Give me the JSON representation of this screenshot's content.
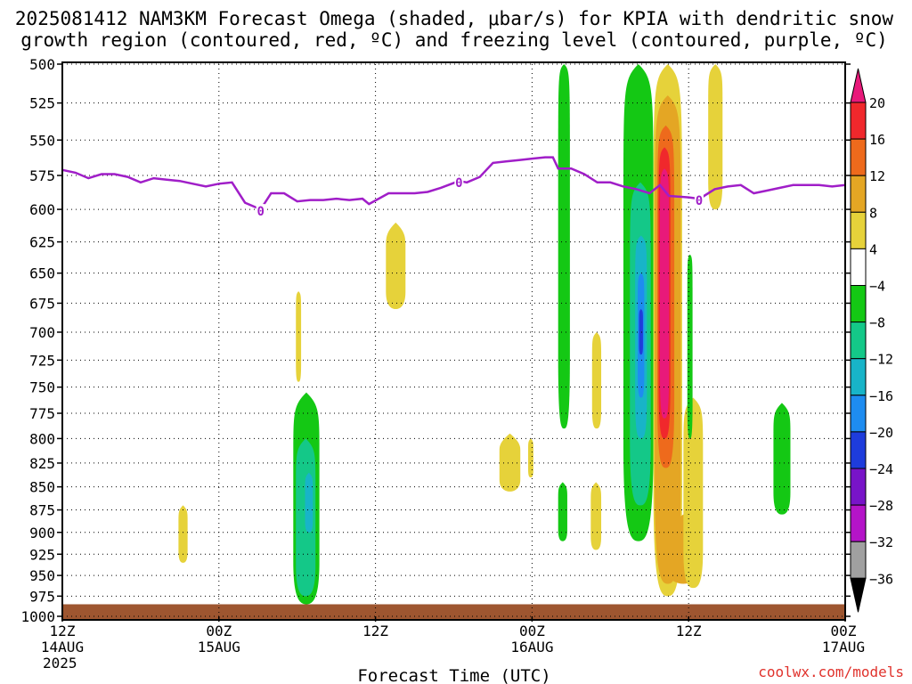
{
  "chart_data": {
    "type": "heatmap",
    "title_line1": "2025081412 NAM3KM Forecast Omega (shaded, μbar/s) for KPIA with dendritic snow",
    "title_line2": "growth region (contoured, red, ºC) and freezing level (contoured, purple, ºC)",
    "xlabel": "Forecast Time (UTC)",
    "credit": "coolwx.com/models",
    "x_unit": "hours from 2025-08-14 12Z",
    "xlim": [
      0,
      60
    ],
    "ylim": [
      500,
      1000
    ],
    "y_scale": "log-pressure (inverted)",
    "grid": true,
    "y_ticks": [
      500,
      525,
      550,
      575,
      600,
      625,
      650,
      675,
      700,
      725,
      750,
      775,
      800,
      825,
      850,
      875,
      900,
      925,
      950,
      975,
      1000
    ],
    "x_ticks": [
      {
        "x": 0,
        "lines": [
          "12Z",
          "14AUG",
          "2025"
        ]
      },
      {
        "x": 12,
        "lines": [
          "00Z",
          "15AUG"
        ]
      },
      {
        "x": 24,
        "lines": [
          "12Z"
        ]
      },
      {
        "x": 36,
        "lines": [
          "00Z",
          "16AUG"
        ]
      },
      {
        "x": 48,
        "lines": [
          "12Z"
        ]
      },
      {
        "x": 60,
        "lines": [
          "00Z",
          "17AUG"
        ]
      }
    ],
    "colorbar": {
      "labels": [
        "20",
        "16",
        "12",
        "8",
        "4",
        "−4",
        "−8",
        "−12",
        "−16",
        "−20",
        "−24",
        "−28",
        "−32",
        "−36"
      ],
      "bands": [
        {
          "from": 20,
          "color": "#e8197a"
        },
        {
          "from": 16,
          "to": 20,
          "color": "#f0282c"
        },
        {
          "from": 12,
          "to": 16,
          "color": "#ee6a1c"
        },
        {
          "from": 8,
          "to": 12,
          "color": "#e4a624"
        },
        {
          "from": 4,
          "to": 8,
          "color": "#e6d23a"
        },
        {
          "from": -4,
          "to": 4,
          "color": "#ffffff"
        },
        {
          "from": -8,
          "to": -4,
          "color": "#14c814"
        },
        {
          "from": -12,
          "to": -8,
          "color": "#14c888"
        },
        {
          "from": -16,
          "to": -12,
          "color": "#18b4c8"
        },
        {
          "from": -20,
          "to": -16,
          "color": "#1e8cf0"
        },
        {
          "from": -24,
          "to": -20,
          "color": "#1e3cdc"
        },
        {
          "from": -28,
          "to": -24,
          "color": "#7814c8"
        },
        {
          "from": -32,
          "to": -28,
          "color": "#b414c8"
        },
        {
          "from": -36,
          "to": -32,
          "color": "#a0a0a0"
        },
        {
          "to": -36,
          "color": "#000000"
        }
      ]
    },
    "freezing_level": {
      "color": "#a01ec8",
      "label": "0",
      "label_x": [
        15.2,
        30.4,
        48.8
      ],
      "points": [
        [
          0,
          571
        ],
        [
          1,
          573
        ],
        [
          2,
          577
        ],
        [
          3,
          574
        ],
        [
          4,
          574
        ],
        [
          5,
          576
        ],
        [
          6,
          580
        ],
        [
          7,
          577
        ],
        [
          8,
          578
        ],
        [
          9,
          579
        ],
        [
          10,
          581
        ],
        [
          11,
          583
        ],
        [
          12,
          581
        ],
        [
          13,
          580
        ],
        [
          14,
          595
        ],
        [
          15.2,
          600
        ],
        [
          16,
          588
        ],
        [
          17,
          588
        ],
        [
          18,
          594
        ],
        [
          19,
          593
        ],
        [
          20,
          593
        ],
        [
          21,
          592
        ],
        [
          22,
          593
        ],
        [
          23,
          592
        ],
        [
          23.5,
          596
        ],
        [
          25,
          588
        ],
        [
          26,
          588
        ],
        [
          27,
          588
        ],
        [
          28,
          587
        ],
        [
          29,
          584
        ],
        [
          30.4,
          579
        ],
        [
          31,
          580
        ],
        [
          32,
          576
        ],
        [
          33,
          566
        ],
        [
          34,
          565
        ],
        [
          35,
          564
        ],
        [
          36,
          563
        ],
        [
          37,
          562
        ],
        [
          37.6,
          562
        ],
        [
          38,
          570
        ],
        [
          39,
          570
        ],
        [
          40,
          574
        ],
        [
          41,
          580
        ],
        [
          42,
          580
        ],
        [
          43,
          583
        ],
        [
          44,
          585
        ],
        [
          45,
          588
        ],
        [
          45.8,
          582
        ],
        [
          46.5,
          590
        ],
        [
          48,
          591
        ],
        [
          48.8,
          592
        ],
        [
          49,
          591
        ],
        [
          50,
          585
        ],
        [
          51,
          583
        ],
        [
          52,
          582
        ],
        [
          53,
          588
        ],
        [
          54,
          586
        ],
        [
          55,
          584
        ],
        [
          56,
          582
        ],
        [
          57,
          582
        ],
        [
          58,
          582
        ],
        [
          59,
          583
        ],
        [
          60,
          582
        ]
      ]
    },
    "surface": {
      "color": "#9e5630",
      "pressure": 985
    },
    "omega_areas": [
      {
        "color": "#14c814",
        "value": -6,
        "x": [
          17.7,
          19.7
        ],
        "p": [
          755,
          985
        ]
      },
      {
        "color": "#14c888",
        "value": -10,
        "x": [
          17.9,
          19.4
        ],
        "p": [
          800,
          975
        ]
      },
      {
        "color": "#18b4c8",
        "value": -14,
        "x": [
          18.6,
          19.2
        ],
        "p": [
          835,
          900
        ]
      },
      {
        "color": "#e6d23a",
        "value": 6,
        "x": [
          8.9,
          9.6
        ],
        "p": [
          870,
          935
        ]
      },
      {
        "color": "#e6d23a",
        "value": 6,
        "x": [
          17.9,
          18.3
        ],
        "p": [
          665,
          745
        ]
      },
      {
        "color": "#e6d23a",
        "value": 6,
        "x": [
          24.8,
          26.3
        ],
        "p": [
          610,
          680
        ]
      },
      {
        "color": "#e6d23a",
        "value": 6,
        "x": [
          33.5,
          35.1
        ],
        "p": [
          795,
          855
        ]
      },
      {
        "color": "#e6d23a",
        "value": 6,
        "x": [
          35.7,
          36.1
        ],
        "p": [
          800,
          840
        ]
      },
      {
        "color": "#14c814",
        "value": -6,
        "x": [
          38.0,
          38.9
        ],
        "p": [
          500,
          790
        ]
      },
      {
        "color": "#14c814",
        "value": -6,
        "x": [
          38.0,
          38.7
        ],
        "p": [
          845,
          910
        ]
      },
      {
        "color": "#e6d23a",
        "value": 6,
        "x": [
          40.6,
          41.3
        ],
        "p": [
          700,
          790
        ]
      },
      {
        "color": "#e6d23a",
        "value": 6,
        "x": [
          40.5,
          41.3
        ],
        "p": [
          845,
          920
        ]
      },
      {
        "color": "#14c814",
        "value": -6,
        "x": [
          43.0,
          45.3
        ],
        "p": [
          500,
          910
        ]
      },
      {
        "color": "#14c888",
        "value": -10,
        "x": [
          43.5,
          45.1
        ],
        "p": [
          580,
          870
        ]
      },
      {
        "color": "#18b4c8",
        "value": -14,
        "x": [
          43.9,
          44.8
        ],
        "p": [
          620,
          800
        ]
      },
      {
        "color": "#1e8cf0",
        "value": -18,
        "x": [
          44.1,
          44.6
        ],
        "p": [
          650,
          760
        ]
      },
      {
        "color": "#1e3cdc",
        "value": -22,
        "x": [
          44.2,
          44.5
        ],
        "p": [
          680,
          720
        ]
      },
      {
        "color": "#e6d23a",
        "value": 6,
        "x": [
          45.3,
          47.5
        ],
        "p": [
          500,
          975
        ]
      },
      {
        "color": "#e4a624",
        "value": 10,
        "x": [
          45.4,
          47.4
        ],
        "p": [
          520,
          960
        ]
      },
      {
        "color": "#ee6a1c",
        "value": 14,
        "x": [
          45.6,
          46.9
        ],
        "p": [
          540,
          830
        ]
      },
      {
        "color": "#f0282c",
        "value": 18,
        "x": [
          45.7,
          46.6
        ],
        "p": [
          555,
          800
        ]
      },
      {
        "color": "#e8197a",
        "value": 22,
        "x": [
          45.8,
          46.5
        ],
        "p": [
          570,
          780
        ]
      },
      {
        "color": "#e4a624",
        "value": 10,
        "x": [
          46.4,
          48.8
        ],
        "p": [
          880,
          960
        ]
      },
      {
        "color": "#e6d23a",
        "value": 6,
        "x": [
          47.6,
          49.1
        ],
        "p": [
          760,
          965
        ]
      },
      {
        "color": "#14c814",
        "value": -6,
        "x": [
          47.9,
          48.3
        ],
        "p": [
          635,
          800
        ]
      },
      {
        "color": "#e6d23a",
        "value": 6,
        "x": [
          49.5,
          50.6
        ],
        "p": [
          500,
          600
        ]
      },
      {
        "color": "#14c814",
        "value": -6,
        "x": [
          54.5,
          55.8
        ],
        "p": [
          765,
          880
        ]
      }
    ]
  }
}
